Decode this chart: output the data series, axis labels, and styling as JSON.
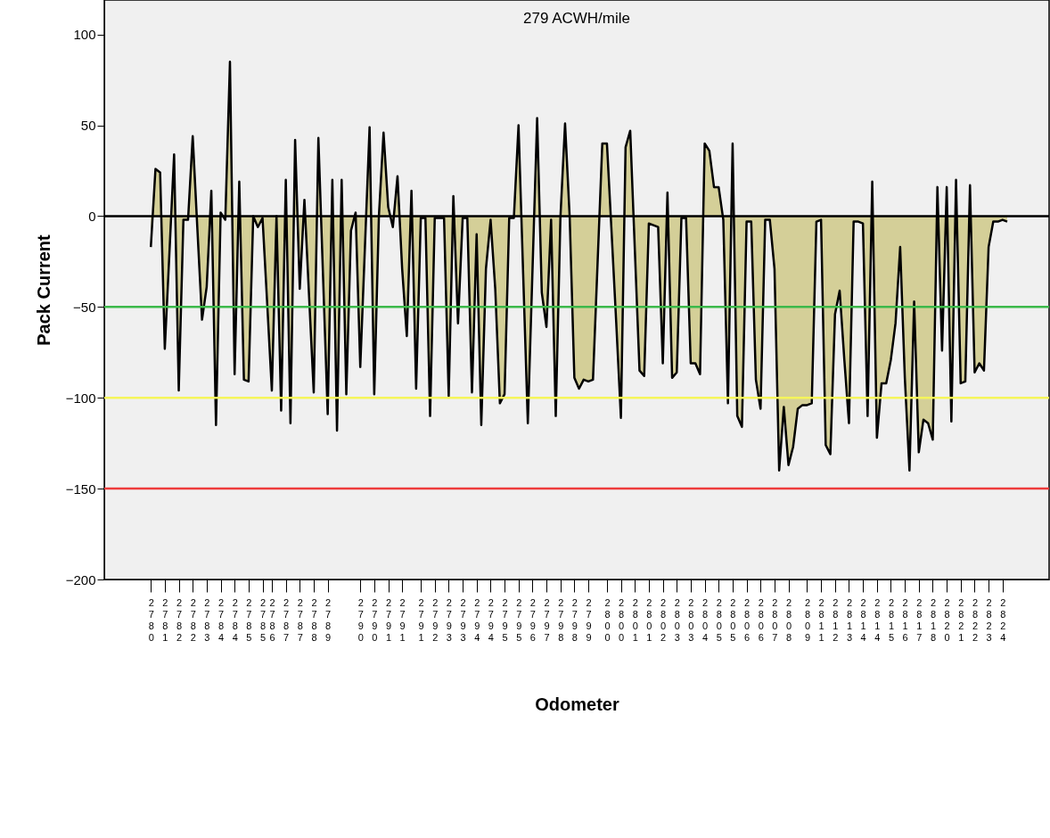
{
  "chart_data": {
    "type": "area",
    "title": "279 ACWH/mile",
    "xlabel": "Odometer",
    "ylabel": "Pack Current",
    "categories": [
      "2780",
      null,
      null,
      "2781",
      null,
      null,
      "2782",
      null,
      null,
      "2782",
      null,
      null,
      "2783",
      null,
      null,
      "2784",
      null,
      null,
      "2784",
      null,
      null,
      "2785",
      null,
      null,
      "2785",
      null,
      "2786",
      null,
      null,
      "2787",
      null,
      null,
      "2787",
      null,
      null,
      "2788",
      null,
      null,
      "2789",
      null,
      null,
      null,
      null,
      null,
      null,
      "2790",
      null,
      null,
      "2790",
      null,
      null,
      "2791",
      null,
      null,
      "2791",
      null,
      null,
      null,
      "2791",
      null,
      null,
      "2792",
      null,
      null,
      "2793",
      null,
      null,
      "2793",
      null,
      null,
      "2794",
      null,
      null,
      "2794",
      null,
      null,
      "2795",
      null,
      null,
      "2795",
      null,
      null,
      "2796",
      null,
      null,
      "2797",
      null,
      null,
      "2798",
      null,
      null,
      "2798",
      null,
      null,
      "2799",
      null,
      null,
      null,
      "2800",
      null,
      null,
      "2800",
      null,
      null,
      "2801",
      null,
      null,
      "2801",
      null,
      null,
      "2802",
      null,
      null,
      "2803",
      null,
      null,
      "2803",
      null,
      null,
      "2804",
      null,
      null,
      "2805",
      null,
      null,
      "2805",
      null,
      null,
      "2806",
      null,
      null,
      "2806",
      null,
      null,
      "2807",
      null,
      null,
      "2808",
      null,
      null,
      null,
      "2809",
      null,
      null,
      "2811",
      null,
      null,
      "2812",
      null,
      null,
      "2813",
      null,
      null,
      "2814",
      null,
      null,
      "2814",
      null,
      null,
      "2815",
      null,
      null,
      "2816",
      null,
      null,
      "2817",
      null,
      null,
      "2818",
      null,
      null,
      "2820",
      null,
      null,
      "2821",
      null,
      null,
      "2822",
      null,
      null,
      "2823",
      null,
      null,
      "2824",
      null
    ],
    "series": [
      {
        "color": "#d4cf98",
        "values": [
          -17,
          26,
          24,
          -73,
          -20,
          34,
          -96,
          -2,
          -2,
          44,
          -7,
          -57,
          -39,
          14,
          -115,
          2,
          -2,
          85,
          -87,
          19,
          -90,
          -91,
          0,
          -6,
          -1,
          -48,
          -96,
          0,
          -107,
          20,
          -114,
          42,
          -40,
          9,
          -44,
          -97,
          43,
          -33,
          -109,
          20,
          -118,
          20,
          -98,
          -8,
          2,
          -83,
          -17,
          49,
          -98,
          0,
          46,
          5,
          -6,
          22,
          -29,
          -66,
          14,
          -95,
          -1,
          -1,
          -110,
          -1,
          -1,
          -1,
          -99,
          11,
          -59,
          -1,
          -1,
          -97,
          -10,
          -115,
          -29,
          -2,
          -40,
          -103,
          -98,
          -1,
          -1,
          50,
          -32,
          -114,
          -30,
          54,
          -42,
          -61,
          -2,
          -110,
          -1,
          51,
          -1,
          -89,
          -95,
          -90,
          -91,
          -90,
          -25,
          40,
          40,
          -9,
          -59,
          -111,
          38,
          47,
          -19,
          -85,
          -88,
          -4,
          -5,
          -6,
          -81,
          13,
          -89,
          -86,
          -1,
          -1,
          -81,
          -81,
          -87,
          40,
          36,
          16,
          16,
          -2,
          -103,
          40,
          -110,
          -116,
          -3,
          -3,
          -90,
          -106,
          -2,
          -2,
          -29,
          -140,
          -105,
          -137,
          -127,
          -106,
          -104,
          -104,
          -103,
          -3,
          -2,
          -126,
          -131,
          -54,
          -41,
          -79,
          -114,
          -3,
          -3,
          -4,
          -110,
          19,
          -122,
          -92,
          -92,
          -79,
          -59,
          -17,
          -89,
          -140,
          -47,
          -130,
          -112,
          -114,
          -123,
          16,
          -74,
          16,
          -113,
          20,
          -92,
          -91,
          17,
          -86,
          -81,
          -85,
          -17,
          -3,
          -3,
          -2,
          -3
        ]
      }
    ],
    "ylim": [
      -200,
      119
    ],
    "yticks": [
      -200,
      -150,
      -100,
      -50,
      0,
      50,
      100
    ],
    "ref_lines": [
      {
        "axis": "y",
        "value": 0,
        "color": "#000000"
      },
      {
        "axis": "y",
        "value": -50,
        "color": "#3cb94a"
      },
      {
        "axis": "y",
        "value": -100,
        "color": "#f5f55a"
      },
      {
        "axis": "y",
        "value": -150,
        "color": "#ee3b3b"
      }
    ],
    "grid": false,
    "legend": false,
    "marker": "none",
    "line_style": "solid"
  }
}
